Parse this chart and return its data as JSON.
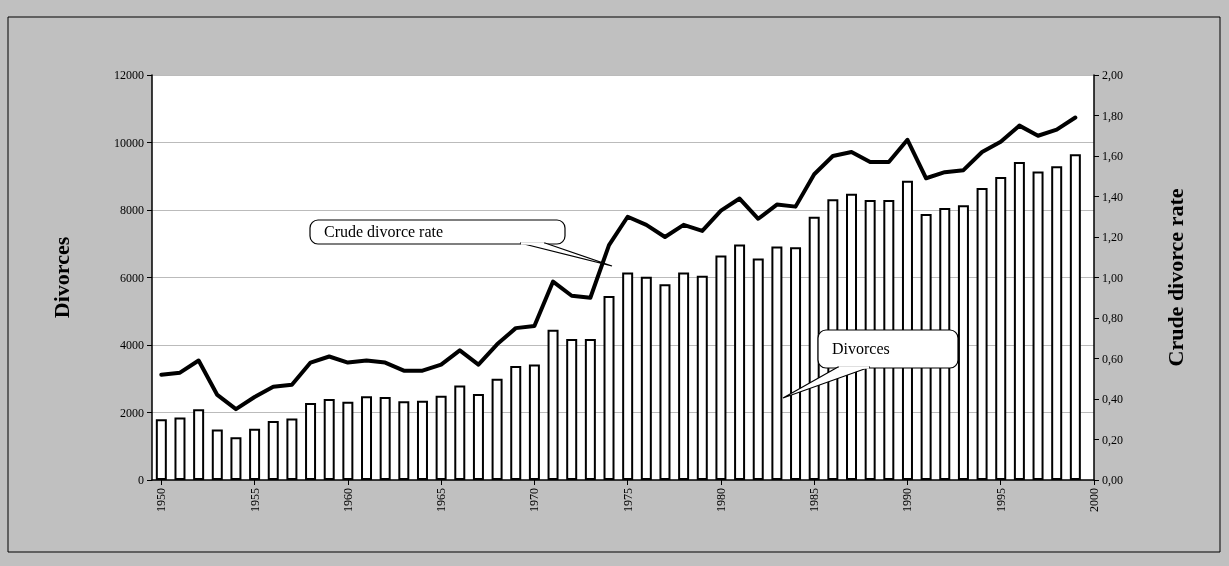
{
  "chart_data": {
    "type": "bar",
    "x": [
      1950,
      1951,
      1952,
      1953,
      1954,
      1955,
      1956,
      1957,
      1958,
      1959,
      1960,
      1961,
      1962,
      1963,
      1964,
      1965,
      1966,
      1967,
      1968,
      1969,
      1970,
      1971,
      1972,
      1973,
      1974,
      1975,
      1976,
      1977,
      1978,
      1979,
      1980,
      1981,
      1982,
      1983,
      1984,
      1985,
      1986,
      1987,
      1988,
      1989,
      1990,
      1991,
      1992,
      1993,
      1994,
      1995,
      1996,
      1997,
      1998,
      1999
    ],
    "series": [
      {
        "name": "Divorces",
        "color": "#ffffff",
        "values": [
          1800,
          1850,
          2100,
          1500,
          1270,
          1520,
          1750,
          1820,
          2280,
          2400,
          2320,
          2480,
          2460,
          2330,
          2350,
          2500,
          2800,
          2550,
          3000,
          3380,
          3420,
          4450,
          4180,
          4180,
          5450,
          6150,
          6020,
          5800,
          6150,
          6050,
          6650,
          6980,
          6560,
          6920,
          6900,
          7800,
          8320,
          8480,
          8300,
          8300,
          8870,
          7880,
          8060,
          8140,
          8650,
          8980,
          9420,
          9140,
          9300,
          9650
        ]
      },
      {
        "name": "Crude divorce rate",
        "type": "line",
        "axis": "y2",
        "color": "#000000",
        "values": [
          0.52,
          0.53,
          0.59,
          0.42,
          0.35,
          0.41,
          0.46,
          0.47,
          0.58,
          0.61,
          0.58,
          0.59,
          0.58,
          0.54,
          0.54,
          0.57,
          0.64,
          0.57,
          0.67,
          0.75,
          0.76,
          0.98,
          0.91,
          0.9,
          1.16,
          1.3,
          1.26,
          1.2,
          1.26,
          1.23,
          1.33,
          1.39,
          1.29,
          1.36,
          1.35,
          1.51,
          1.6,
          1.62,
          1.57,
          1.57,
          1.68,
          1.49,
          1.52,
          1.53,
          1.62,
          1.67,
          1.75,
          1.7,
          1.73,
          1.79
        ]
      }
    ],
    "ylabel": "Divorces",
    "y2label": "Crude divorce rate",
    "xlim": [
      1949.5,
      2000
    ],
    "xticks": [
      1950,
      1955,
      1960,
      1965,
      1970,
      1975,
      1980,
      1985,
      1990,
      1995,
      2000
    ],
    "ylim": [
      0,
      12000
    ],
    "yticks": [
      0,
      2000,
      4000,
      6000,
      8000,
      10000,
      12000
    ],
    "y2lim": [
      0,
      2
    ],
    "y2ticks": [
      {
        "value": 0,
        "label": "0,00"
      },
      {
        "value": 0.2,
        "label": "0,20"
      },
      {
        "value": 0.4,
        "label": "0,40"
      },
      {
        "value": 0.6,
        "label": "0,60"
      },
      {
        "value": 0.8,
        "label": "0,80"
      },
      {
        "value": 1,
        "label": "1,00"
      },
      {
        "value": 1.2,
        "label": "1,20"
      },
      {
        "value": 1.4,
        "label": "1,40"
      },
      {
        "value": 1.6,
        "label": "1,60"
      },
      {
        "value": 1.8,
        "label": "1,80"
      },
      {
        "value": 2,
        "label": "2,00"
      }
    ],
    "grid": "y",
    "marker": "none",
    "line_style": "solid"
  }
}
